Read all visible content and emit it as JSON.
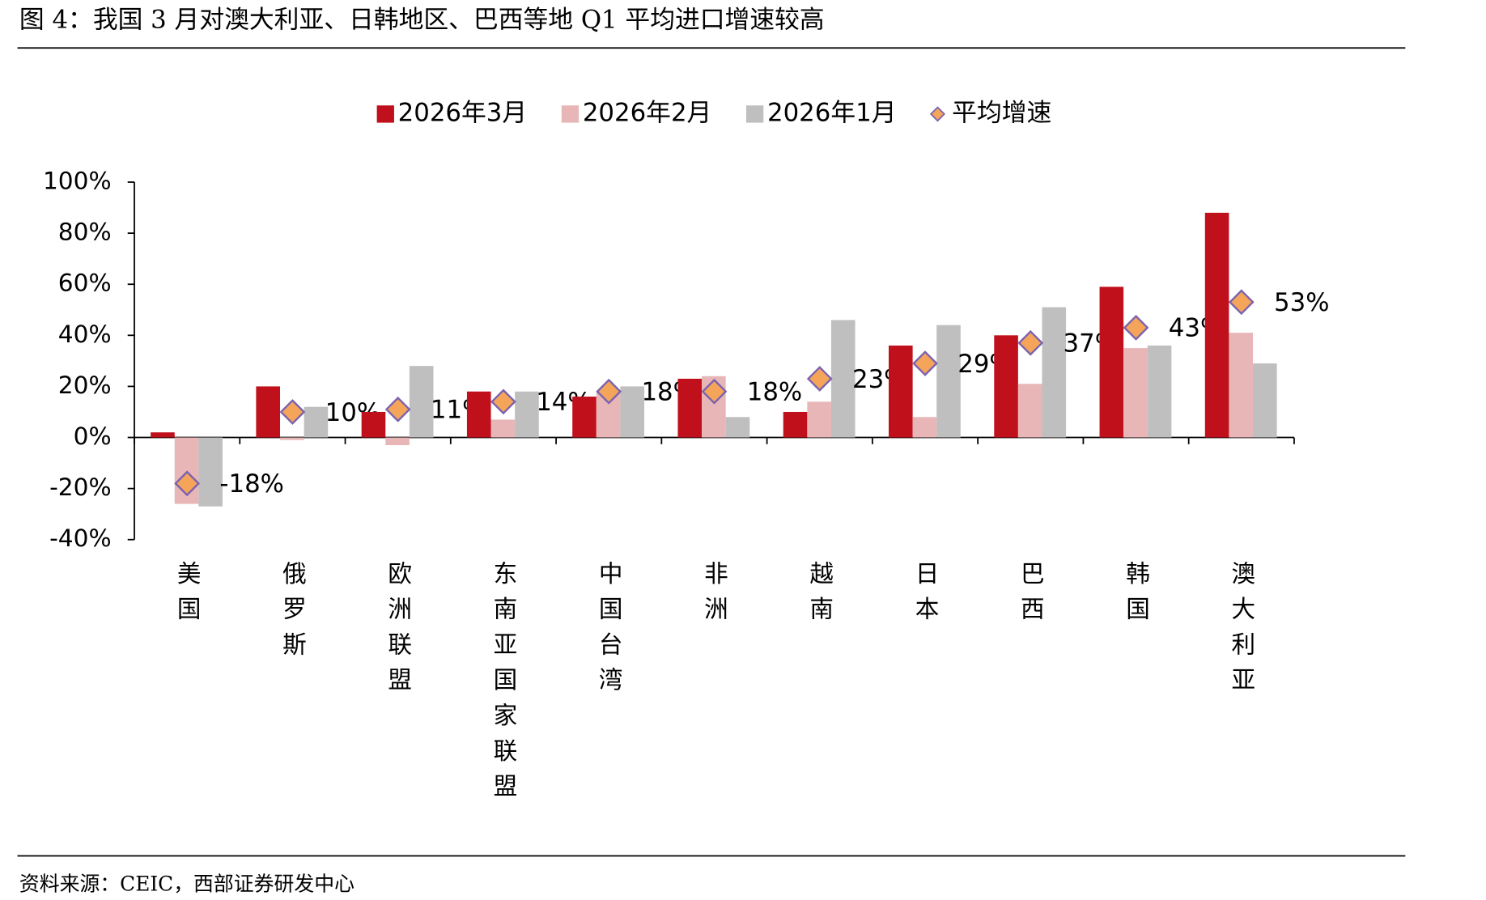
{
  "header": {
    "title": "图 4：我国 3 月对澳大利亚、日韩地区、巴西等地 Q1 平均进口增速较高"
  },
  "chart_data": {
    "type": "bar",
    "categories": [
      "美国",
      "俄罗斯",
      "欧洲联盟",
      "东南亚国家联盟",
      "中国台湾",
      "非洲",
      "越南",
      "日本",
      "巴西",
      "韩国",
      "澳大利亚"
    ],
    "series": [
      {
        "name": "2026年3月",
        "color": "#c0101c",
        "values": [
          2,
          20,
          10,
          18,
          16,
          23,
          10,
          36,
          40,
          59,
          88
        ]
      },
      {
        "name": "2026年2月",
        "color": "#e8b6b6",
        "values": [
          -26,
          -1,
          -3,
          7,
          18,
          24,
          14,
          8,
          21,
          35,
          41
        ]
      },
      {
        "name": "2026年1月",
        "color": "#bfbfbf",
        "values": [
          -27,
          12,
          28,
          18,
          20,
          8,
          46,
          44,
          51,
          36,
          29
        ]
      },
      {
        "name": "平均增速",
        "type": "scatter",
        "color": "#f5a55a",
        "edge_color": "#7a62b0",
        "values": [
          -18,
          10,
          11,
          14,
          18,
          18,
          23,
          29,
          37,
          43,
          53
        ],
        "value_labels": [
          "-18%",
          "10%",
          "11%",
          "14%",
          "18%",
          "18%",
          "23%",
          "29%",
          "37%",
          "43%",
          "53%"
        ]
      }
    ],
    "ylim": [
      -40,
      100
    ],
    "yticks": [
      {
        "value": -40,
        "label": "-40%"
      },
      {
        "value": -20,
        "label": "-20%"
      },
      {
        "value": 0,
        "label": "0%"
      },
      {
        "value": 20,
        "label": "20%"
      },
      {
        "value": 40,
        "label": "40%"
      },
      {
        "value": 60,
        "label": "60%"
      },
      {
        "value": 80,
        "label": "80%"
      },
      {
        "value": 100,
        "label": "100%"
      }
    ],
    "grid": false,
    "legend": "top"
  },
  "footer": {
    "source": "资料来源：CEIC，西部证券研发中心"
  }
}
